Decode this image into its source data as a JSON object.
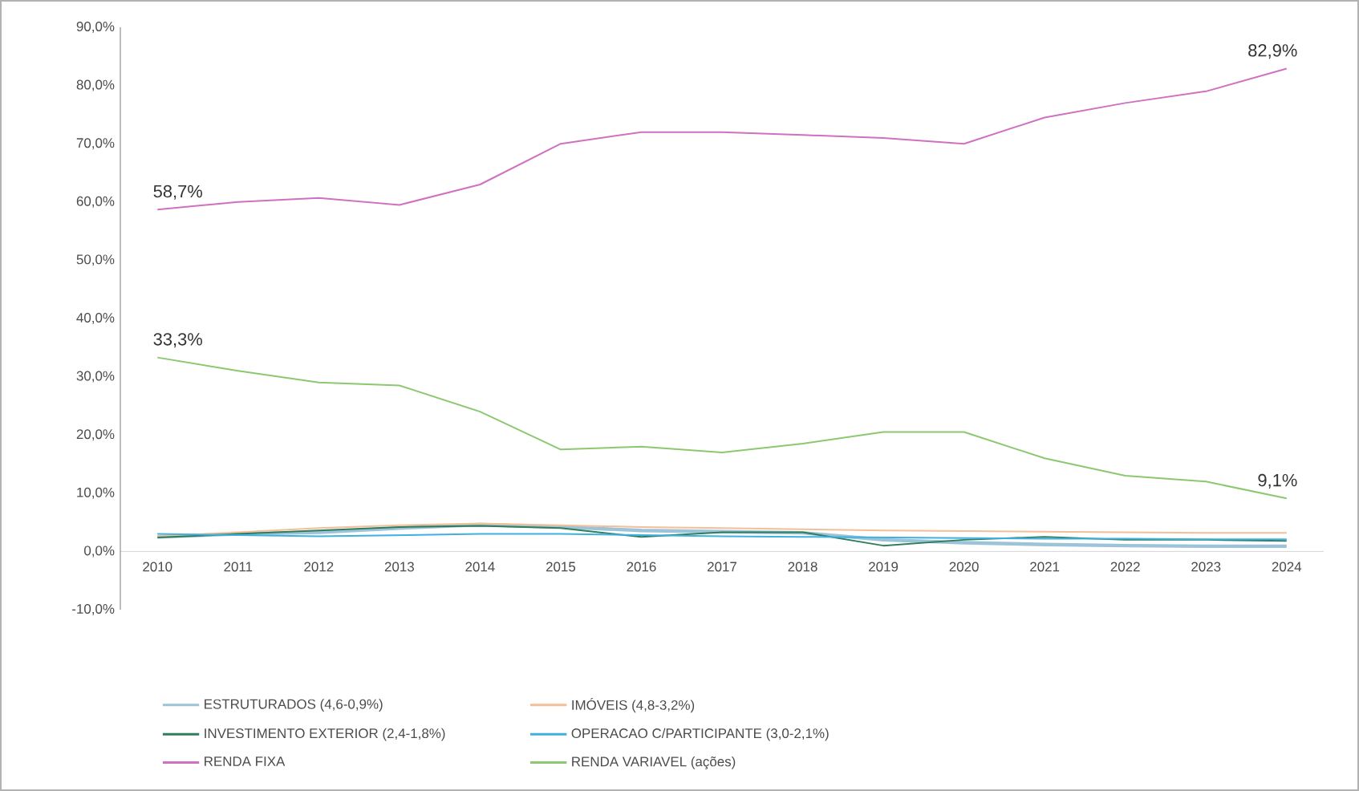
{
  "chart_data": {
    "type": "line",
    "categories": [
      "2010",
      "2011",
      "2012",
      "2013",
      "2014",
      "2015",
      "2016",
      "2017",
      "2018",
      "2019",
      "2020",
      "2021",
      "2022",
      "2023",
      "2024"
    ],
    "series": [
      {
        "name": "ESTRUTURADOS (4,6-0,9%)",
        "color": "#9dc3d8",
        "values": [
          2.5,
          3.0,
          3.3,
          4.0,
          4.6,
          4.2,
          3.6,
          3.4,
          3.2,
          2.0,
          1.5,
          1.2,
          1.0,
          0.9,
          0.9
        ]
      },
      {
        "name": "IMÓVEIS (4,8-3,2%)",
        "color": "#f2bf98",
        "values": [
          2.6,
          3.3,
          4.0,
          4.5,
          4.8,
          4.5,
          4.2,
          4.0,
          3.8,
          3.6,
          3.5,
          3.4,
          3.3,
          3.2,
          3.2
        ]
      },
      {
        "name": "INVESTIMENTO EXTERIOR (2,4-1,8%)",
        "color": "#2e7d5b",
        "values": [
          2.4,
          3.0,
          3.6,
          4.2,
          4.4,
          4.0,
          2.5,
          3.3,
          3.3,
          1.0,
          2.0,
          2.5,
          2.0,
          2.0,
          1.8
        ]
      },
      {
        "name": "OPERACAO C/PARTICIPANTE (3,0-2,1%)",
        "color": "#3fb0e0",
        "values": [
          3.0,
          2.8,
          2.6,
          2.8,
          3.0,
          3.0,
          2.8,
          2.6,
          2.5,
          2.4,
          2.3,
          2.2,
          2.2,
          2.1,
          2.1
        ]
      },
      {
        "name": "RENDA FIXA",
        "color": "#d070c0",
        "values": [
          58.7,
          60.0,
          60.7,
          59.5,
          63.0,
          70.0,
          72.0,
          72.0,
          71.5,
          71.0,
          70.0,
          74.5,
          77.0,
          79.0,
          82.9
        ]
      },
      {
        "name": "RENDA VARIAVEL (ações)",
        "color": "#8cc870",
        "values": [
          33.3,
          31.0,
          29.0,
          28.5,
          24.0,
          17.5,
          18.0,
          17.0,
          18.5,
          20.5,
          20.5,
          16.0,
          13.0,
          12.0,
          9.1
        ]
      }
    ],
    "ylim": [
      -10,
      90
    ],
    "yticks": [
      {
        "value": -10,
        "label": "-10,0%"
      },
      {
        "value": 0,
        "label": "0,0%"
      },
      {
        "value": 10,
        "label": "10,0%"
      },
      {
        "value": 20,
        "label": "20,0%"
      },
      {
        "value": 30,
        "label": "30,0%"
      },
      {
        "value": 40,
        "label": "40,0%"
      },
      {
        "value": 50,
        "label": "50,0%"
      },
      {
        "value": 60,
        "label": "60,0%"
      },
      {
        "value": 70,
        "label": "70,0%"
      },
      {
        "value": 80,
        "label": "80,0%"
      },
      {
        "value": 90,
        "label": "90,0%"
      }
    ],
    "annotations": [
      {
        "text": "58,7%",
        "x": "2010",
        "y": 58.7
      },
      {
        "text": "82,9%",
        "x": "2024",
        "y": 82.9
      },
      {
        "text": "33,3%",
        "x": "2010",
        "y": 33.3
      },
      {
        "text": "9,1%",
        "x": "2024",
        "y": 9.1
      }
    ],
    "legend": "bottom",
    "grid": false,
    "marker": "none",
    "line_style": "solid"
  }
}
